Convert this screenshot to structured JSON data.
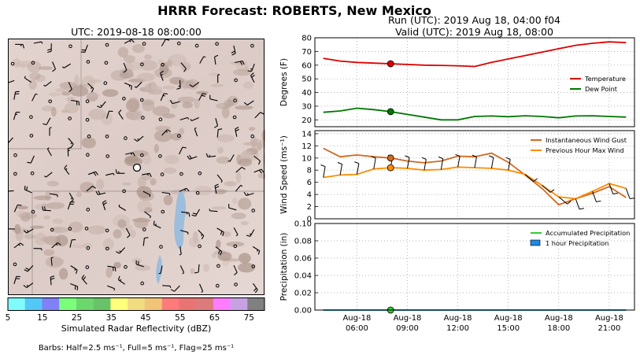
{
  "suptitle": "HRRR Forecast: ROBERTS, New Mexico",
  "map": {
    "title": "UTC: 2019-08-18 08:00:00",
    "colorbar_label": "Simulated Radar Reflectivity (dBZ)",
    "colorbar_ticks": [
      "5",
      "15",
      "25",
      "35",
      "45",
      "55",
      "65",
      "75"
    ],
    "colorbar_colors": [
      "#7ffbfb",
      "#53c8f7",
      "#8080f7",
      "#7bff7b",
      "#6cd76c",
      "#68c268",
      "#ffff7b",
      "#f2dc82",
      "#f2c478",
      "#ff7b7b",
      "#ea7373",
      "#dc7b7b",
      "#ff7bff",
      "#c7a2e3",
      "#808080"
    ],
    "barb_note": "Barbs: Half=2.5 ms⁻¹, Full=5 ms⁻¹, Flag=25 ms⁻¹"
  },
  "run": {
    "line1": "Run (UTC): 2019 Aug 18, 04:00 f04",
    "line2": "Valid (UTC): 2019 Aug 18, 08:00"
  },
  "chart_data": [
    {
      "type": "line",
      "panel": "temperature",
      "ylabel": "Degrees (F)",
      "ylim": [
        15,
        80
      ],
      "yticks": [
        20,
        30,
        40,
        50,
        60,
        70,
        80
      ],
      "grid": true,
      "legend": "center-right",
      "x_hours": [
        4,
        5,
        6,
        7,
        8,
        9,
        10,
        11,
        12,
        13,
        14,
        15,
        16,
        17,
        18,
        19,
        20,
        21,
        22
      ],
      "series": [
        {
          "name": "Temperature",
          "color": "#dd0000",
          "values": [
            65,
            63,
            62,
            61.5,
            61,
            60.5,
            60,
            59.8,
            59.5,
            59,
            62,
            64.5,
            67,
            69.5,
            72,
            74.5,
            76,
            77,
            76.5
          ]
        },
        {
          "name": "Dew Point",
          "color": "#007700",
          "values": [
            25.5,
            26.5,
            28.5,
            27.5,
            26,
            24,
            22,
            20,
            20,
            22.5,
            22.8,
            22.3,
            23,
            22.5,
            21.5,
            22.8,
            23,
            22.5,
            22
          ]
        }
      ],
      "markers": [
        {
          "x": 8,
          "y": 61,
          "color": "#dd0000"
        },
        {
          "x": 8,
          "y": 26,
          "color": "#007700"
        }
      ]
    },
    {
      "type": "line",
      "panel": "wind",
      "ylabel": "Wind Speed (ms⁻¹)",
      "ylim": [
        0,
        14.5
      ],
      "yticks": [
        0,
        2,
        4,
        6,
        8,
        10,
        12,
        14
      ],
      "grid": true,
      "legend": "top-right",
      "x_hours": [
        4,
        5,
        6,
        7,
        8,
        9,
        10,
        11,
        12,
        13,
        14,
        15,
        16,
        17,
        18,
        19,
        20,
        21,
        22
      ],
      "series": [
        {
          "name": "Instantaneous Wind Gust",
          "color": "#d2691e",
          "values": [
            11.6,
            10.2,
            10.5,
            10.2,
            10,
            9.5,
            9.2,
            9.5,
            10.3,
            10.2,
            10.8,
            9.3,
            7.2,
            5,
            2.3,
            3.3,
            4.2,
            5.3,
            3.5
          ]
        },
        {
          "name": "Previous Hour Max Wind",
          "color": "#ff8c00",
          "values": [
            6.8,
            7.2,
            7.3,
            8.2,
            8.4,
            8.3,
            8.0,
            8.1,
            8.5,
            8.4,
            8.3,
            8.0,
            7.3,
            5.5,
            3.6,
            3.3,
            4.5,
            5.8,
            5.0
          ]
        }
      ],
      "markers": [
        {
          "x": 8,
          "y": 10,
          "color": "#d2691e"
        },
        {
          "x": 8,
          "y": 8.4,
          "color": "#ff8c00"
        }
      ]
    },
    {
      "type": "line",
      "panel": "precipitation",
      "ylabel": "Precipitation (in)",
      "ylim": [
        0,
        0.1
      ],
      "yticks": [
        "0.00",
        "0.02",
        "0.04",
        "0.06",
        "0.08",
        "0.10"
      ],
      "grid": true,
      "legend": "top-right",
      "x_hours": [
        4,
        5,
        6,
        7,
        8,
        9,
        10,
        11,
        12,
        13,
        14,
        15,
        16,
        17,
        18,
        19,
        20,
        21,
        22
      ],
      "series": [
        {
          "name": "Accumulated Precipitation",
          "color": "#33cc33",
          "values": [
            0,
            0,
            0,
            0,
            0,
            0,
            0,
            0,
            0,
            0,
            0,
            0,
            0,
            0,
            0,
            0,
            0,
            0,
            0
          ]
        },
        {
          "name": "1 hour Precipitation",
          "color": "#1e88e5",
          "values": [
            0,
            0,
            0,
            0,
            0,
            0,
            0,
            0,
            0,
            0,
            0,
            0,
            0,
            0,
            0,
            0,
            0,
            0,
            0
          ]
        }
      ],
      "markers": [
        {
          "x": 8,
          "y": 0,
          "color": "#33cc33"
        }
      ],
      "x_ticks": [
        {
          "x": 6,
          "top": "Aug-18",
          "bottom": "06:00"
        },
        {
          "x": 9,
          "top": "Aug-18",
          "bottom": "09:00"
        },
        {
          "x": 12,
          "top": "Aug-18",
          "bottom": "12:00"
        },
        {
          "x": 15,
          "top": "Aug-18",
          "bottom": "15:00"
        },
        {
          "x": 18,
          "top": "Aug-18",
          "bottom": "18:00"
        },
        {
          "x": 21,
          "top": "Aug-18",
          "bottom": "21:00"
        }
      ]
    }
  ]
}
